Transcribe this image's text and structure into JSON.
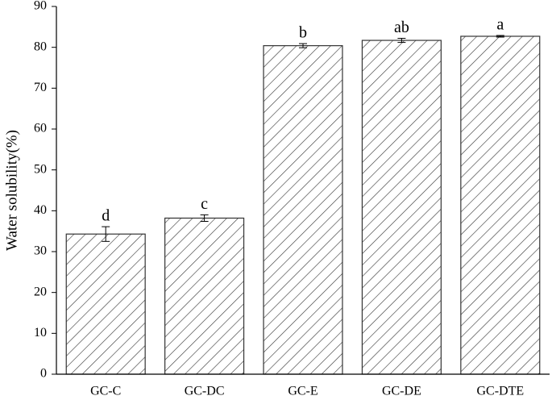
{
  "chart_data": {
    "type": "bar",
    "y_label": "Water solubility(%)",
    "categories": [
      "GC-C",
      "GC-DC",
      "GC-E",
      "GC-DE",
      "GC-DTE"
    ],
    "values": [
      34.3,
      38.2,
      80.4,
      81.7,
      82.7
    ],
    "errors": [
      1.8,
      0.8,
      0.5,
      0.5,
      0.2
    ],
    "annotations": [
      "d",
      "c",
      "b",
      "ab",
      "a"
    ],
    "color": "#333333",
    "ylim": [
      0,
      90
    ],
    "yticks": [
      0,
      10,
      20,
      30,
      40,
      50,
      60,
      70,
      80,
      90
    ],
    "grid": false
  }
}
